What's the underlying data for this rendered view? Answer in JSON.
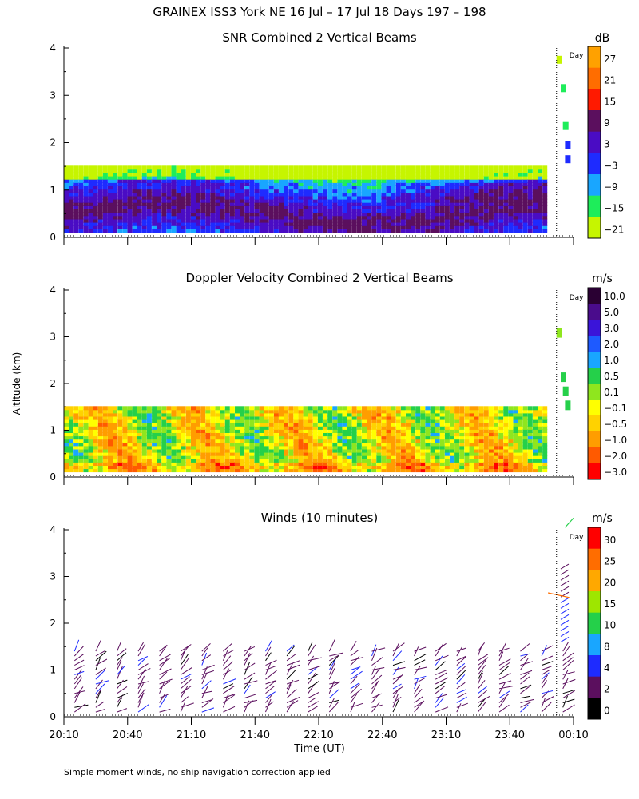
{
  "figure": {
    "title": "GRAINEX ISS3 York NE  16 Jul – 17 Jul 18 Days 197 – 198",
    "ylabel": "Altitude (km)",
    "xlabel": "Time (UT)",
    "footnote": "Simple moment winds, no ship navigation correction applied",
    "x_ticks": [
      "20:10",
      "20:40",
      "21:10",
      "21:40",
      "22:10",
      "22:40",
      "23:10",
      "23:40",
      "00:10"
    ],
    "day_marker_label": "Day"
  },
  "chart_data": [
    {
      "type": "heatmap",
      "title": "SNR Combined 2 Vertical Beams",
      "colorbar_unit": "dB",
      "ylim": [
        0,
        4
      ],
      "y_ticks": [
        "0",
        "1",
        "2",
        "3",
        "4"
      ],
      "xlim": [
        "20:10",
        "00:10"
      ],
      "colorbar_labels": [
        "27",
        "21",
        "15",
        "9",
        "3",
        "−3",
        "−9",
        "−15",
        "−21"
      ],
      "colorbar_colors": [
        "#ffa100",
        "#ff6d00",
        "#ff1a00",
        "#5b0f5e",
        "#4a0cc4",
        "#1e2bff",
        "#19a6ff",
        "#1eed5a",
        "#c6f500"
      ],
      "data_coverage": "continuous 0.1–1.45 km from 20:10 to 23:55; sparse returns up to 3.7 km after 23:55",
      "band_levels": [
        -3,
        9,
        3,
        9,
        15,
        3,
        -3,
        -9,
        -15
      ]
    },
    {
      "type": "heatmap",
      "title": "Doppler Velocity Combined 2 Vertical Beams",
      "colorbar_unit": "m/s",
      "ylim": [
        0,
        4
      ],
      "y_ticks": [
        "0",
        "1",
        "2",
        "3",
        "4"
      ],
      "xlim": [
        "20:10",
        "00:10"
      ],
      "colorbar_labels": [
        "10.0",
        "5.0",
        "3.0",
        "2.0",
        "1.0",
        "0.5",
        "0.1",
        "−0.1",
        "−0.5",
        "−1.0",
        "−2.0",
        "−3.0"
      ],
      "colorbar_colors": [
        "#2a0033",
        "#4a0c8c",
        "#3a14d9",
        "#1e5aff",
        "#19a6ff",
        "#25d04a",
        "#8fe61e",
        "#ffff00",
        "#ffd200",
        "#ff9d00",
        "#ff5a00",
        "#ff0000"
      ],
      "data_coverage": "continuous 0.1–1.45 km from 20:10 to 23:55; sparse returns up to 3.1 km after 23:55",
      "dominant_values": [
        -0.5,
        -0.1,
        0.1,
        -1.0,
        0.5
      ]
    },
    {
      "type": "scatter",
      "title": "Winds (10 minutes)",
      "colorbar_unit": "m/s",
      "ylim": [
        0,
        4
      ],
      "y_ticks": [
        "0",
        "1",
        "2",
        "3",
        "4"
      ],
      "xlim": [
        "20:10",
        "00:10"
      ],
      "colorbar_labels": [
        "30",
        "25",
        "20",
        "15",
        "10",
        "8",
        "4",
        "2",
        "0"
      ],
      "colorbar_colors": [
        "#ff0000",
        "#ff6d00",
        "#ffa800",
        "#9ee600",
        "#25d04a",
        "#19a6ff",
        "#1e2bff",
        "#5b0f5e",
        "#000000"
      ],
      "profile_times": [
        "20:15",
        "20:25",
        "20:35",
        "20:45",
        "20:55",
        "21:05",
        "21:15",
        "21:25",
        "21:35",
        "21:45",
        "21:55",
        "22:05",
        "22:15",
        "22:25",
        "22:35",
        "22:45",
        "22:55",
        "23:05",
        "23:15",
        "23:25",
        "23:35",
        "23:45",
        "23:55",
        "00:05"
      ],
      "wind_barb_altitude_range_km": [
        0.1,
        1.5
      ],
      "dominant_speed_m_s": [
        2,
        4
      ]
    }
  ]
}
